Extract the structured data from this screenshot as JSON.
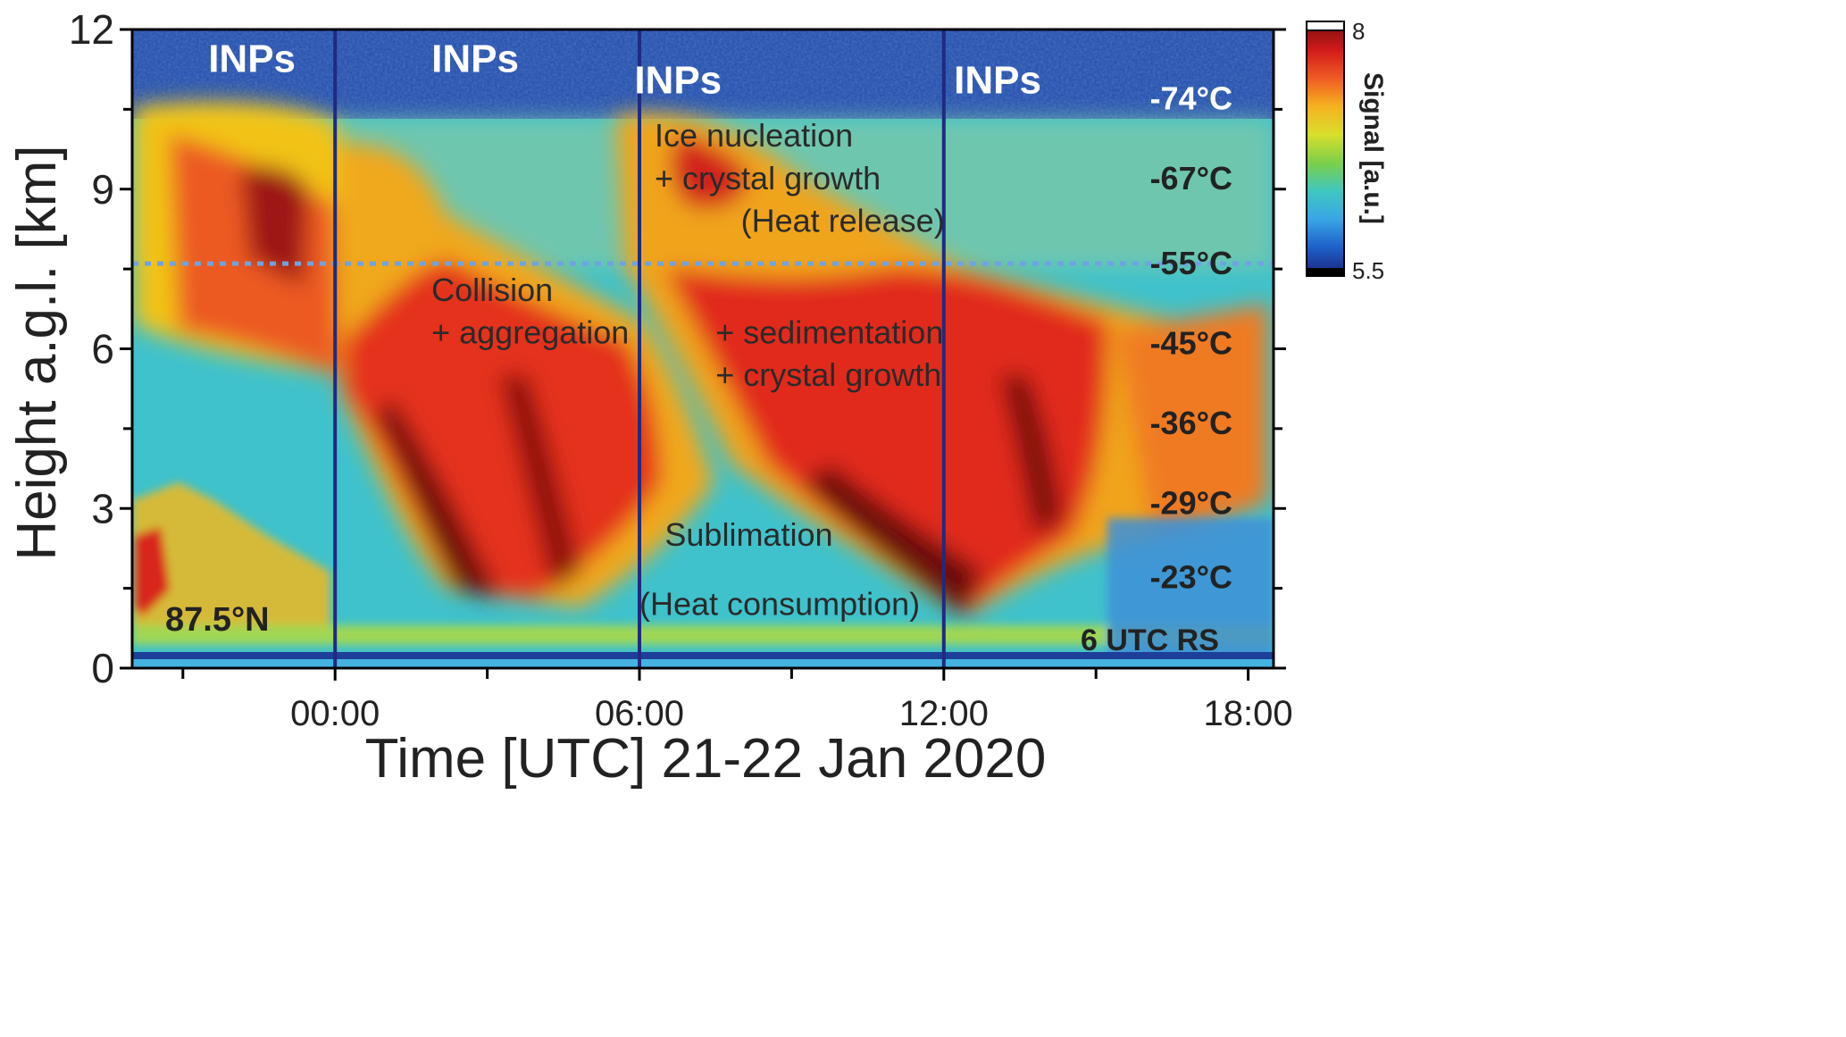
{
  "chart_data": {
    "type": "heatmap",
    "title": "",
    "xlabel": "Time [UTC] 21-22 Jan 2020",
    "ylabel": "Height a.g.l. [km]",
    "xlim": [
      -4,
      18.5
    ],
    "ylim": [
      0,
      12
    ],
    "x_ticks": [
      {
        "value": 0,
        "label": "00:00"
      },
      {
        "value": 6,
        "label": "06:00"
      },
      {
        "value": 12,
        "label": "12:00"
      },
      {
        "value": 18,
        "label": "18:00"
      }
    ],
    "x_minor_ticks": [
      -3,
      3,
      9,
      15
    ],
    "y_ticks": [
      {
        "value": 0,
        "label": "0"
      },
      {
        "value": 3,
        "label": "3"
      },
      {
        "value": 6,
        "label": "6"
      },
      {
        "value": 9,
        "label": "9"
      },
      {
        "value": 12,
        "label": "12"
      }
    ],
    "y_minor_ticks": [
      1.5,
      4.5,
      7.5,
      10.5
    ],
    "vertical_lines": [
      0,
      6,
      12
    ],
    "dotted_line_height": 7.6,
    "colorbar": {
      "label": "Signal [a.u.]",
      "min": 5.5,
      "max": 8,
      "min_label": "5.5",
      "max_label": "8",
      "colors": [
        "#1a237e",
        "#1e5fc8",
        "#3aa5e6",
        "#3fc7c0",
        "#7ccf4a",
        "#d8df2c",
        "#f5b21f",
        "#ef5a24",
        "#d11a1a",
        "#7a0e0e"
      ]
    },
    "region_label": "87.5°N",
    "radiosonde_label": "6 UTC RS",
    "temperatures": [
      {
        "label": "-74°C",
        "height": 10.7
      },
      {
        "label": "-67°C",
        "height": 9.2
      },
      {
        "label": "-55°C",
        "height": 7.6
      },
      {
        "label": "-45°C",
        "height": 6.1
      },
      {
        "label": "-36°C",
        "height": 4.6
      },
      {
        "label": "-29°C",
        "height": 3.1
      },
      {
        "label": "-23°C",
        "height": 1.7
      }
    ],
    "inp_labels": [
      {
        "text": "INPs",
        "time": -2.5,
        "height": 11.2
      },
      {
        "text": "INPs",
        "time": 1.9,
        "height": 11.2
      },
      {
        "text": "INPs",
        "time": 5.9,
        "height": 10.8
      },
      {
        "text": "INPs",
        "time": 12.2,
        "height": 10.8
      }
    ],
    "annotations": [
      {
        "text": "Ice nucleation",
        "time": 6.3,
        "height": 9.8
      },
      {
        "text": "+ crystal growth",
        "time": 6.3,
        "height": 9.0
      },
      {
        "text": "(Heat release)",
        "time": 8.0,
        "height": 8.2
      },
      {
        "text": "Collision",
        "time": 1.9,
        "height": 6.9
      },
      {
        "text": "+ aggregation",
        "time": 1.9,
        "height": 6.1
      },
      {
        "text": "+ sedimentation",
        "time": 7.5,
        "height": 6.1
      },
      {
        "text": "+ crystal growth",
        "time": 7.5,
        "height": 5.3
      },
      {
        "text": "Sublimation",
        "time": 6.5,
        "height": 2.3
      },
      {
        "text": "(Heat consumption)",
        "time": 6.0,
        "height": 1.0
      }
    ]
  }
}
